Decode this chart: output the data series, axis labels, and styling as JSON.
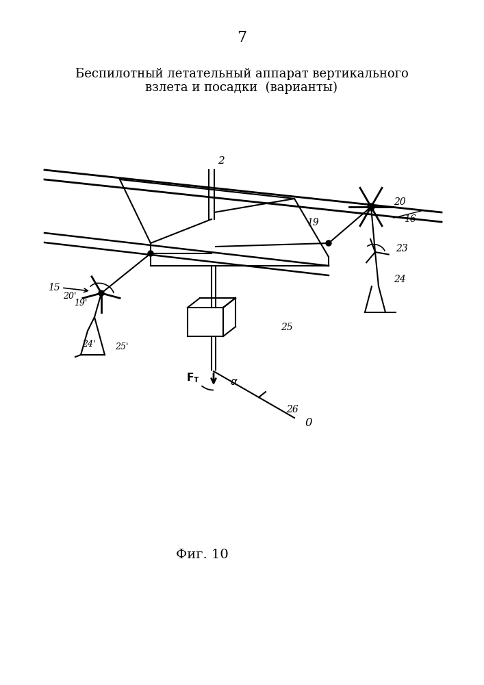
{
  "page_number": "7",
  "title_line1": "Беспилотный летательный аппарат вертикального",
  "title_line2": "взлета и посадки  (варианты)",
  "fig_caption": "Фиг. 10",
  "background": "#ffffff",
  "line_color": "#000000"
}
